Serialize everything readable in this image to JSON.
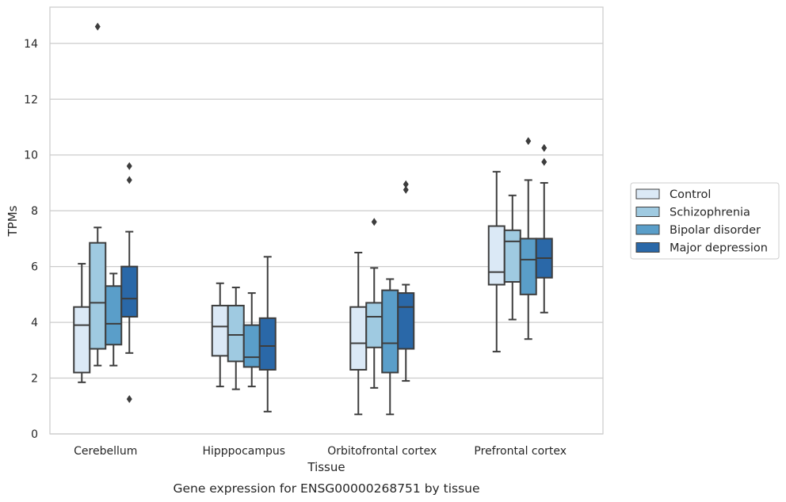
{
  "chart_data": {
    "type": "box",
    "title": "",
    "caption": "Gene expression for ENSG00000268751 by tissue",
    "xlabel": "Tissue",
    "ylabel": "TPMs",
    "ylim": [
      0,
      15.3
    ],
    "yticks": [
      0,
      2,
      4,
      6,
      8,
      10,
      12,
      14
    ],
    "grid": true,
    "legend_position": "right",
    "categories": [
      "Cerebellum",
      "Hipppocampus",
      "Orbitofrontal cortex",
      "Prefrontal cortex"
    ],
    "series": [
      {
        "name": "Control",
        "color": "#dbe9f6",
        "boxes": [
          {
            "whisker_low": 1.85,
            "q1": 2.2,
            "median": 3.9,
            "q3": 4.55,
            "whisker_high": 6.1,
            "outliers": []
          },
          {
            "whisker_low": 1.7,
            "q1": 2.8,
            "median": 3.85,
            "q3": 4.6,
            "whisker_high": 5.4,
            "outliers": []
          },
          {
            "whisker_low": 0.7,
            "q1": 2.3,
            "median": 3.25,
            "q3": 4.55,
            "whisker_high": 6.5,
            "outliers": []
          },
          {
            "whisker_low": 2.95,
            "q1": 5.35,
            "median": 5.8,
            "q3": 7.45,
            "whisker_high": 9.4,
            "outliers": []
          }
        ]
      },
      {
        "name": "Schizophrenia",
        "color": "#9fcae1",
        "boxes": [
          {
            "whisker_low": 2.45,
            "q1": 3.05,
            "median": 4.7,
            "q3": 6.85,
            "whisker_high": 7.4,
            "outliers": [
              14.6
            ]
          },
          {
            "whisker_low": 1.6,
            "q1": 2.6,
            "median": 3.55,
            "q3": 4.6,
            "whisker_high": 5.25,
            "outliers": []
          },
          {
            "whisker_low": 1.65,
            "q1": 3.1,
            "median": 4.2,
            "q3": 4.7,
            "whisker_high": 5.95,
            "outliers": [
              7.6
            ]
          },
          {
            "whisker_low": 4.1,
            "q1": 5.45,
            "median": 6.9,
            "q3": 7.3,
            "whisker_high": 8.55,
            "outliers": []
          }
        ]
      },
      {
        "name": "Bipolar disorder",
        "color": "#5a9ec9",
        "boxes": [
          {
            "whisker_low": 2.45,
            "q1": 3.2,
            "median": 3.95,
            "q3": 5.3,
            "whisker_high": 5.75,
            "outliers": []
          },
          {
            "whisker_low": 1.7,
            "q1": 2.4,
            "median": 2.75,
            "q3": 3.9,
            "whisker_high": 5.05,
            "outliers": []
          },
          {
            "whisker_low": 0.7,
            "q1": 2.2,
            "median": 3.25,
            "q3": 5.15,
            "whisker_high": 5.55,
            "outliers": []
          },
          {
            "whisker_low": 3.4,
            "q1": 5.0,
            "median": 6.25,
            "q3": 7.0,
            "whisker_high": 9.1,
            "outliers": [
              10.5
            ]
          }
        ]
      },
      {
        "name": "Major depression",
        "color": "#2a68a8",
        "boxes": [
          {
            "whisker_low": 2.9,
            "q1": 4.2,
            "median": 4.85,
            "q3": 6.0,
            "whisker_high": 7.25,
            "outliers": [
              9.6,
              9.1,
              1.25
            ]
          },
          {
            "whisker_low": 0.8,
            "q1": 2.3,
            "median": 3.15,
            "q3": 4.15,
            "whisker_high": 6.35,
            "outliers": []
          },
          {
            "whisker_low": 1.9,
            "q1": 3.05,
            "median": 4.55,
            "q3": 5.05,
            "whisker_high": 5.35,
            "outliers": [
              8.95,
              8.75
            ]
          },
          {
            "whisker_low": 4.35,
            "q1": 5.6,
            "median": 6.3,
            "q3": 7.0,
            "whisker_high": 9.0,
            "outliers": [
              10.25,
              9.75
            ]
          }
        ]
      }
    ]
  }
}
